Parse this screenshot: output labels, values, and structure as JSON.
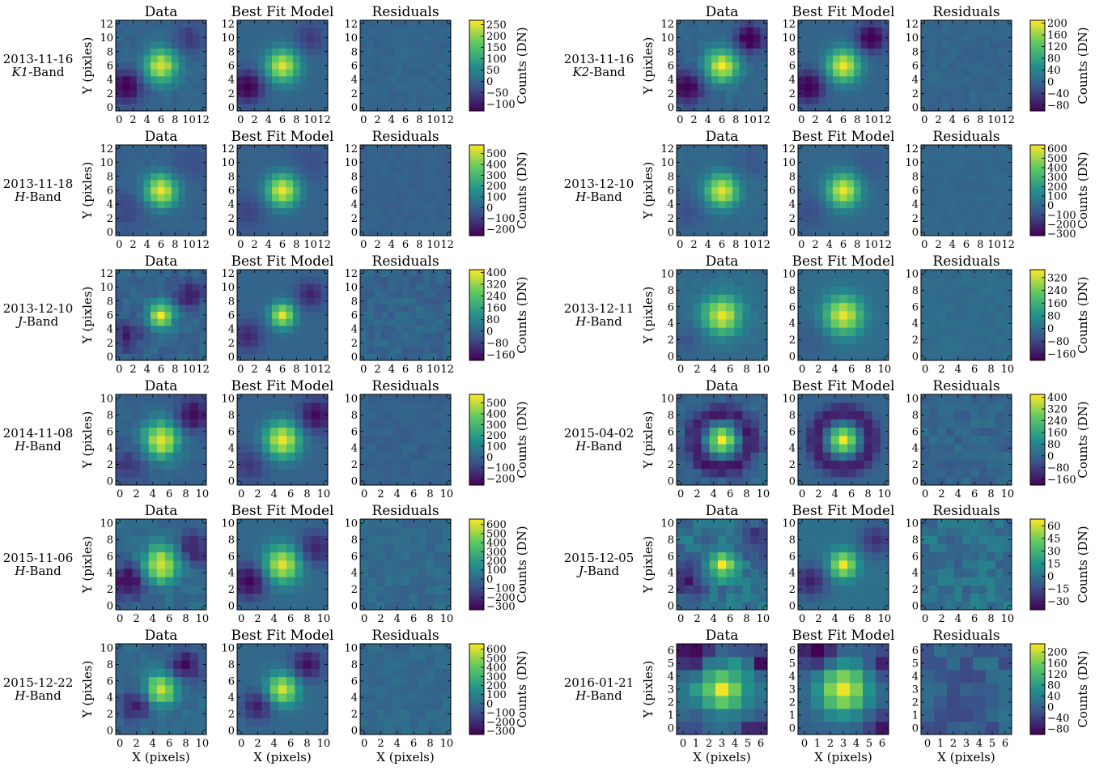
{
  "figure": {
    "panel_titles": [
      "Data",
      "Best Fit Model",
      "Residuals"
    ],
    "ylabel": "Y (pixles)",
    "xlabel": "X (pixels)",
    "colorbar_label": "Counts (DN)",
    "colormap": "viridis",
    "colormap_stops": [
      "#440154",
      "#3b528b",
      "#21918c",
      "#5ec962",
      "#fde725"
    ]
  },
  "chart_data": [
    {
      "type": "heatmap",
      "date": "2013-11-16",
      "band": "K1",
      "band_suffix": "-Band",
      "grid_size": 13,
      "vmin": -130,
      "vmax": 270,
      "xticks": [
        0,
        2,
        4,
        6,
        8,
        10,
        12
      ],
      "yticks": [
        0,
        2,
        4,
        6,
        8,
        10,
        12
      ],
      "cbar_ticks": [
        250,
        200,
        150,
        100,
        50,
        0,
        -50,
        -100
      ],
      "cbar_ticklabels": [
        "250",
        "200",
        "150",
        "100",
        "50",
        "0",
        "−50",
        "−100"
      ],
      "psf": {
        "center": [
          6,
          6
        ],
        "peak": 250,
        "sigma": 1.6,
        "ring_amp": 0
      },
      "blobs": [
        {
          "x": 1,
          "y": 3,
          "amp": -140,
          "s": 1.6
        },
        {
          "x": 10,
          "y": 10,
          "amp": -60,
          "s": 1.6
        }
      ],
      "residual": {
        "amp": 12,
        "seed": 11
      }
    },
    {
      "type": "heatmap",
      "date": "2013-11-18",
      "band": "H",
      "band_suffix": "-Band",
      "grid_size": 13,
      "vmin": -260,
      "vmax": 580,
      "xticks": [
        0,
        2,
        4,
        6,
        8,
        10,
        12
      ],
      "yticks": [
        0,
        2,
        4,
        6,
        8,
        10,
        12
      ],
      "cbar_ticks": [
        500,
        400,
        300,
        200,
        100,
        0,
        -100,
        -200
      ],
      "cbar_ticklabels": [
        "500",
        "400",
        "300",
        "200",
        "100",
        "0",
        "−100",
        "−200"
      ],
      "psf": {
        "center": [
          6,
          6
        ],
        "peak": 560,
        "sigma": 1.6,
        "ring_amp": 0
      },
      "blobs": [
        {
          "x": 1,
          "y": 3,
          "amp": -90,
          "s": 1.8
        },
        {
          "x": 10,
          "y": 10,
          "amp": -60,
          "s": 1.8
        }
      ],
      "residual": {
        "amp": 20,
        "seed": 12
      }
    },
    {
      "type": "heatmap",
      "date": "2013-12-10",
      "band": "J",
      "band_suffix": "-Band",
      "grid_size": 13,
      "vmin": -200,
      "vmax": 420,
      "xticks": [
        0,
        2,
        4,
        6,
        8,
        10,
        12
      ],
      "yticks": [
        0,
        2,
        4,
        6,
        8,
        10,
        12
      ],
      "cbar_ticks": [
        400,
        320,
        240,
        160,
        80,
        0,
        -80,
        -160
      ],
      "cbar_ticklabels": [
        "400",
        "320",
        "240",
        "160",
        "80",
        "0",
        "−80",
        "−160"
      ],
      "psf": {
        "center": [
          6,
          6
        ],
        "peak": 400,
        "sigma": 1.2,
        "ring_amp": 0
      },
      "blobs": [
        {
          "x": 1,
          "y": 3,
          "amp": -130,
          "s": 1.6
        },
        {
          "x": 10,
          "y": 9,
          "amp": -140,
          "s": 1.4
        }
      ],
      "residual": {
        "amp": 35,
        "seed": 13
      }
    },
    {
      "type": "heatmap",
      "date": "2014-11-08",
      "band": "H",
      "band_suffix": "-Band",
      "grid_size": 11,
      "vmin": -260,
      "vmax": 580,
      "xticks": [
        0,
        2,
        4,
        6,
        8,
        10
      ],
      "yticks": [
        0,
        2,
        4,
        6,
        8,
        10
      ],
      "cbar_ticks": [
        500,
        400,
        300,
        200,
        100,
        0,
        -100,
        -200
      ],
      "cbar_ticklabels": [
        "500",
        "400",
        "300",
        "200",
        "100",
        "0",
        "−100",
        "−200"
      ],
      "psf": {
        "center": [
          5,
          5
        ],
        "peak": 560,
        "sigma": 1.5,
        "ring_amp": 0
      },
      "blobs": [
        {
          "x": 1,
          "y": 2,
          "amp": -120,
          "s": 1.5
        },
        {
          "x": 9,
          "y": 8,
          "amp": -240,
          "s": 1.4
        }
      ],
      "residual": {
        "amp": 25,
        "seed": 14
      }
    },
    {
      "type": "heatmap",
      "date": "2015-11-06",
      "band": "H",
      "band_suffix": "-Band",
      "grid_size": 11,
      "vmin": -340,
      "vmax": 660,
      "xticks": [
        0,
        2,
        4,
        6,
        8,
        10
      ],
      "yticks": [
        0,
        2,
        4,
        6,
        8,
        10
      ],
      "cbar_ticks": [
        600,
        500,
        400,
        300,
        200,
        100,
        0,
        -100,
        -200,
        -300
      ],
      "cbar_ticklabels": [
        "600",
        "500",
        "400",
        "300",
        "200",
        "100",
        "0",
        "−100",
        "−200",
        "−300"
      ],
      "psf": {
        "center": [
          5,
          5
        ],
        "peak": 620,
        "sigma": 1.5,
        "ring_amp": 0
      },
      "blobs": [
        {
          "x": 1,
          "y": 3,
          "amp": -330,
          "s": 1.5
        },
        {
          "x": 9,
          "y": 7,
          "amp": -240,
          "s": 1.5
        }
      ],
      "residual": {
        "amp": 45,
        "seed": 15
      }
    },
    {
      "type": "heatmap",
      "date": "2015-12-22",
      "band": "H",
      "band_suffix": "-Band",
      "grid_size": 11,
      "vmin": -340,
      "vmax": 660,
      "xticks": [
        0,
        2,
        4,
        6,
        8,
        10
      ],
      "yticks": [
        0,
        2,
        4,
        6,
        8,
        10
      ],
      "cbar_ticks": [
        600,
        500,
        400,
        300,
        200,
        100,
        0,
        -100,
        -200,
        -300
      ],
      "cbar_ticklabels": [
        "600",
        "500",
        "400",
        "300",
        "200",
        "100",
        "0",
        "−100",
        "−200",
        "−300"
      ],
      "psf": {
        "center": [
          5,
          5
        ],
        "peak": 600,
        "sigma": 1.3,
        "ring_amp": 0
      },
      "blobs": [
        {
          "x": 2,
          "y": 3,
          "amp": -260,
          "s": 1.3
        },
        {
          "x": 8,
          "y": 8,
          "amp": -300,
          "s": 1.3
        }
      ],
      "residual": {
        "amp": 40,
        "seed": 16
      }
    },
    {
      "type": "heatmap",
      "date": "2013-11-16",
      "band": "K2",
      "band_suffix": "-Band",
      "grid_size": 13,
      "vmin": -100,
      "vmax": 210,
      "xticks": [
        0,
        2,
        4,
        6,
        8,
        10,
        12
      ],
      "yticks": [
        0,
        2,
        4,
        6,
        8,
        10,
        12
      ],
      "cbar_ticks": [
        200,
        160,
        120,
        80,
        40,
        0,
        -40,
        -80
      ],
      "cbar_ticklabels": [
        "200",
        "160",
        "120",
        "80",
        "40",
        "0",
        "−40",
        "−80"
      ],
      "psf": {
        "center": [
          6,
          6
        ],
        "peak": 205,
        "sigma": 1.6,
        "ring_amp": 0
      },
      "blobs": [
        {
          "x": 1,
          "y": 3,
          "amp": -110,
          "s": 1.6
        },
        {
          "x": 10,
          "y": 10,
          "amp": -115,
          "s": 1.4
        }
      ],
      "residual": {
        "amp": 10,
        "seed": 17
      }
    },
    {
      "type": "heatmap",
      "date": "2013-12-10",
      "band": "H",
      "band_suffix": "-Band",
      "grid_size": 13,
      "vmin": -320,
      "vmax": 640,
      "xticks": [
        0,
        2,
        4,
        6,
        8,
        10,
        12
      ],
      "yticks": [
        0,
        2,
        4,
        6,
        8,
        10,
        12
      ],
      "cbar_ticks": [
        600,
        500,
        400,
        300,
        200,
        100,
        0,
        -100,
        -200,
        -300
      ],
      "cbar_ticklabels": [
        "600",
        "500",
        "400",
        "300",
        "200",
        "100",
        "0",
        "−100",
        "−200",
        "−300"
      ],
      "psf": {
        "center": [
          6,
          6
        ],
        "peak": 620,
        "sigma": 1.6,
        "ring_amp": 0
      },
      "blobs": [
        {
          "x": 1,
          "y": 3,
          "amp": -90,
          "s": 1.8
        },
        {
          "x": 10,
          "y": 10,
          "amp": -60,
          "s": 1.8
        }
      ],
      "residual": {
        "amp": 20,
        "seed": 18
      }
    },
    {
      "type": "heatmap",
      "date": "2013-12-11",
      "band": "H",
      "band_suffix": "-Band",
      "grid_size": 11,
      "vmin": -200,
      "vmax": 370,
      "xticks": [
        0,
        2,
        4,
        6,
        8,
        10
      ],
      "yticks": [
        0,
        2,
        4,
        6,
        8,
        10
      ],
      "cbar_ticks": [
        320,
        240,
        160,
        80,
        0,
        -80,
        -160
      ],
      "cbar_ticklabels": [
        "320",
        "240",
        "160",
        "80",
        "0",
        "−80",
        "−160"
      ],
      "psf": {
        "center": [
          5,
          5
        ],
        "peak": 350,
        "sigma": 1.6,
        "ring_amp": 0
      },
      "blobs": [
        {
          "x": 1,
          "y": 2,
          "amp": -40,
          "s": 1.8
        }
      ],
      "residual": {
        "amp": 15,
        "seed": 19
      }
    },
    {
      "type": "heatmap",
      "date": "2015-04-02",
      "band": "H",
      "band_suffix": "-Band",
      "grid_size": 11,
      "vmin": -200,
      "vmax": 420,
      "xticks": [
        0,
        2,
        4,
        6,
        8,
        10
      ],
      "yticks": [
        0,
        2,
        4,
        6,
        8,
        10
      ],
      "cbar_ticks": [
        400,
        320,
        240,
        160,
        80,
        0,
        -80,
        -160
      ],
      "cbar_ticklabels": [
        "400",
        "320",
        "240",
        "160",
        "80",
        "0",
        "−80",
        "−160"
      ],
      "psf": {
        "center": [
          5,
          5
        ],
        "peak": 410,
        "sigma": 1.1,
        "ring_amp": -150
      },
      "blobs": [],
      "residual": {
        "amp": 35,
        "seed": 20
      }
    },
    {
      "type": "heatmap",
      "date": "2015-12-05",
      "band": "J",
      "band_suffix": "-Band",
      "grid_size": 11,
      "vmin": -40,
      "vmax": 68,
      "xticks": [
        0,
        2,
        4,
        6,
        8,
        10
      ],
      "yticks": [
        0,
        2,
        4,
        6,
        8,
        10
      ],
      "cbar_ticks": [
        60,
        45,
        30,
        15,
        0,
        -15,
        -30
      ],
      "cbar_ticklabels": [
        "60",
        "45",
        "30",
        "15",
        "0",
        "−15",
        "−30"
      ],
      "psf": {
        "center": [
          5,
          5
        ],
        "peak": 66,
        "sigma": 1.1,
        "ring_amp": 0
      },
      "blobs": [
        {
          "x": 1,
          "y": 3,
          "amp": -30,
          "s": 1.4
        },
        {
          "x": 9,
          "y": 8,
          "amp": -25,
          "s": 1.4
        }
      ],
      "residual": {
        "amp": 10,
        "seed": 21
      }
    },
    {
      "type": "heatmap",
      "date": "2016-01-21",
      "band": "H",
      "band_suffix": "-Band",
      "grid_size": 7,
      "vmin": -100,
      "vmax": 230,
      "xticks": [
        0,
        1,
        2,
        3,
        4,
        5,
        6
      ],
      "yticks": [
        0,
        1,
        2,
        3,
        4,
        5,
        6
      ],
      "cbar_ticks": [
        200,
        160,
        120,
        80,
        40,
        0,
        -40,
        -80
      ],
      "cbar_ticklabels": [
        "200",
        "160",
        "120",
        "80",
        "40",
        "0",
        "−40",
        "−80"
      ],
      "psf": {
        "center": [
          3,
          3
        ],
        "peak": 220,
        "sigma": 1.3,
        "ring_amp": 0
      },
      "blobs": [
        {
          "x": 1,
          "y": 6,
          "amp": -120,
          "s": 0.9
        },
        {
          "x": 6,
          "y": 0,
          "amp": -80,
          "s": 0.8
        },
        {
          "x": 6,
          "y": 5,
          "amp": -70,
          "s": 0.7
        }
      ],
      "residual": {
        "amp": 30,
        "seed": 22
      }
    }
  ]
}
